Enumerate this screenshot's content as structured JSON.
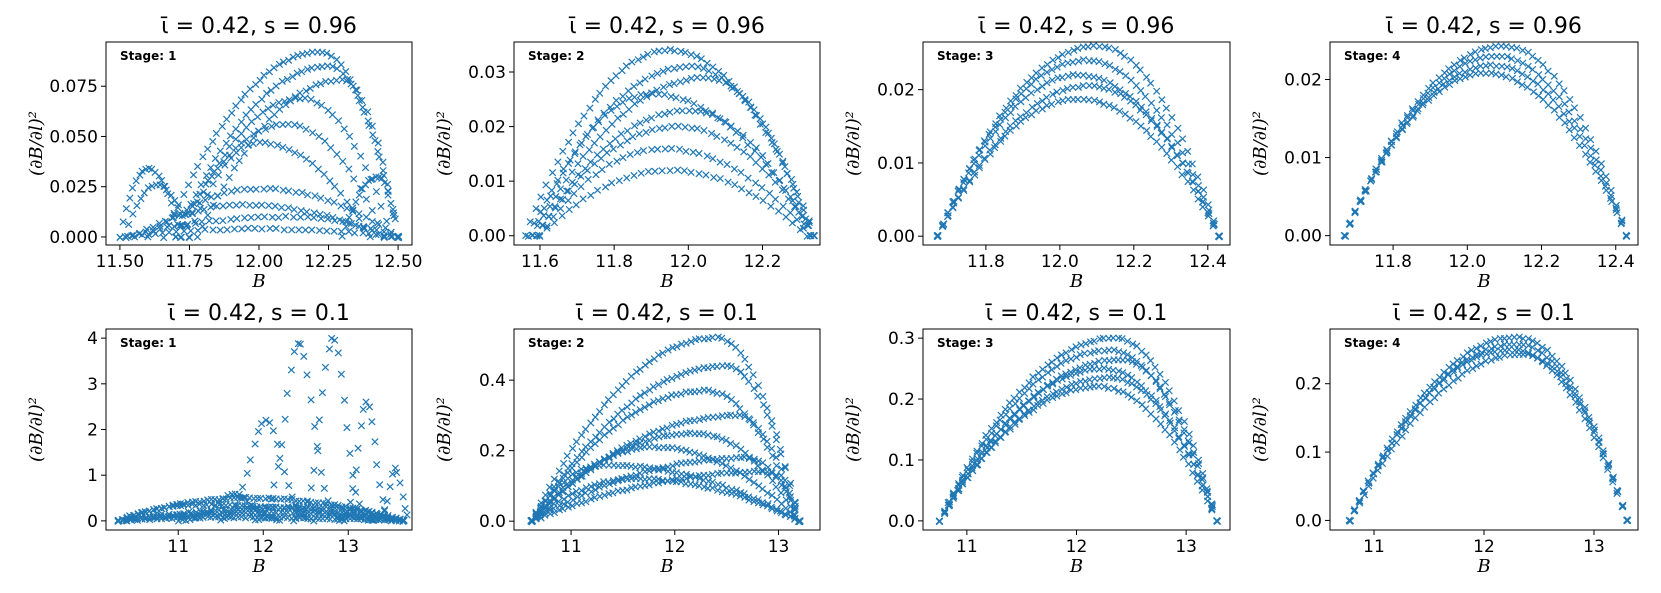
{
  "figure": {
    "ylabel": "(∂B/∂l)²",
    "xlabel": "B",
    "marker_color": "#1f77b4"
  },
  "chart_data": [
    {
      "type": "scatter",
      "row": 1,
      "col": 1,
      "title": "ῑ = 0.42, s = 0.96",
      "annotation": "Stage: 1",
      "xlabel": "B",
      "ylabel": "(∂B/∂l)²",
      "xlim": [
        11.45,
        12.55
      ],
      "ylim": [
        -0.004,
        0.097
      ],
      "xticks": [
        11.5,
        11.75,
        12.0,
        12.25,
        12.5
      ],
      "xtick_labels": [
        "11.50",
        "11.75",
        "12.00",
        "12.25",
        "12.50"
      ],
      "yticks": [
        0.0,
        0.025,
        0.05,
        0.075
      ],
      "ytick_labels": [
        "0.000",
        "0.025",
        "0.050",
        "0.075"
      ],
      "series": [
        {
          "name": "arc",
          "curve": "arc",
          "x": [
            11.66,
            12.5
          ],
          "peak": [
            12.22,
            0.092
          ],
          "n": 50
        },
        {
          "name": "arc",
          "curve": "arc",
          "x": [
            11.7,
            12.5
          ],
          "peak": [
            12.25,
            0.085
          ],
          "n": 45
        },
        {
          "name": "arc",
          "curve": "arc",
          "x": [
            11.78,
            12.5
          ],
          "peak": [
            12.3,
            0.078
          ],
          "n": 40
        },
        {
          "name": "arc",
          "curve": "arc",
          "x": [
            11.72,
            12.48
          ],
          "peak": [
            12.15,
            0.069
          ],
          "n": 40
        },
        {
          "name": "arc",
          "curve": "arc",
          "x": [
            11.7,
            12.45
          ],
          "peak": [
            12.1,
            0.056
          ],
          "n": 36
        },
        {
          "name": "arc",
          "curve": "arc",
          "x": [
            11.75,
            12.4
          ],
          "peak": [
            12.0,
            0.047
          ],
          "n": 32
        },
        {
          "name": "arc",
          "curve": "arc",
          "x": [
            11.5,
            11.72
          ],
          "peak": [
            11.6,
            0.034
          ],
          "n": 20
        },
        {
          "name": "arc",
          "curve": "arc",
          "x": [
            11.52,
            11.75
          ],
          "peak": [
            11.63,
            0.026
          ],
          "n": 18
        },
        {
          "name": "arc",
          "curve": "arc",
          "x": [
            12.3,
            12.5
          ],
          "peak": [
            12.43,
            0.03
          ],
          "n": 18
        },
        {
          "name": "arc",
          "curve": "arc",
          "x": [
            11.6,
            12.5
          ],
          "peak": [
            12.0,
            0.024
          ],
          "n": 40
        },
        {
          "name": "arc",
          "curve": "arc",
          "x": [
            11.55,
            12.45
          ],
          "peak": [
            11.95,
            0.016
          ],
          "n": 40
        },
        {
          "name": "arc",
          "curve": "arc",
          "x": [
            11.52,
            12.5
          ],
          "peak": [
            12.1,
            0.01
          ],
          "n": 40
        },
        {
          "name": "arc",
          "curve": "arc",
          "x": [
            11.5,
            12.5
          ],
          "peak": [
            12.0,
            0.004
          ],
          "n": 40
        }
      ]
    },
    {
      "type": "scatter",
      "row": 1,
      "col": 2,
      "title": "ῑ = 0.42, s = 0.96",
      "annotation": "Stage: 2",
      "xlabel": "B",
      "ylabel": "(∂B/∂l)²",
      "xlim": [
        11.53,
        12.355
      ],
      "ylim": [
        -0.0017,
        0.0355
      ],
      "xticks": [
        11.6,
        11.8,
        12.0,
        12.2
      ],
      "xtick_labels": [
        "11.6",
        "11.8",
        "12.0",
        "12.2"
      ],
      "yticks": [
        0.0,
        0.01,
        0.02,
        0.03
      ],
      "ytick_labels": [
        "0.00",
        "0.01",
        "0.02",
        "0.03"
      ],
      "series": [
        {
          "name": "arc",
          "curve": "arc",
          "x": [
            11.56,
            12.34
          ],
          "peak": [
            11.95,
            0.034
          ],
          "n": 55
        },
        {
          "name": "arc",
          "curve": "arc",
          "x": [
            11.57,
            12.34
          ],
          "peak": [
            12.0,
            0.031
          ],
          "n": 50
        },
        {
          "name": "arc",
          "curve": "arc",
          "x": [
            11.58,
            12.33
          ],
          "peak": [
            12.05,
            0.029
          ],
          "n": 50
        },
        {
          "name": "arc",
          "curve": "arc",
          "x": [
            11.58,
            12.34
          ],
          "peak": [
            11.9,
            0.026
          ],
          "n": 48
        },
        {
          "name": "arc",
          "curve": "arc",
          "x": [
            11.59,
            12.33
          ],
          "peak": [
            12.0,
            0.023
          ],
          "n": 46
        },
        {
          "name": "arc",
          "curve": "arc",
          "x": [
            11.59,
            12.34
          ],
          "peak": [
            11.97,
            0.02
          ],
          "n": 44
        },
        {
          "name": "arc",
          "curve": "arc",
          "x": [
            11.6,
            12.33
          ],
          "peak": [
            11.93,
            0.016
          ],
          "n": 40
        },
        {
          "name": "arc",
          "curve": "arc",
          "x": [
            11.6,
            12.32
          ],
          "peak": [
            11.95,
            0.012
          ],
          "n": 38
        }
      ]
    },
    {
      "type": "scatter",
      "row": 1,
      "col": 3,
      "title": "ῑ = 0.42, s = 0.96",
      "annotation": "Stage: 3",
      "xlabel": "B",
      "ylabel": "(∂B/∂l)²",
      "xlim": [
        11.63,
        12.46
      ],
      "ylim": [
        -0.0012,
        0.0265
      ],
      "xticks": [
        11.8,
        12.0,
        12.2,
        12.4
      ],
      "xtick_labels": [
        "11.8",
        "12.0",
        "12.2",
        "12.4"
      ],
      "yticks": [
        0.0,
        0.01,
        0.02
      ],
      "ytick_labels": [
        "0.00",
        "0.01",
        "0.02"
      ],
      "series": [
        {
          "name": "arc",
          "curve": "arc",
          "x": [
            11.67,
            12.43
          ],
          "peak": [
            12.1,
            0.026
          ],
          "n": 55
        },
        {
          "name": "arc",
          "curve": "arc",
          "x": [
            11.67,
            12.43
          ],
          "peak": [
            12.07,
            0.024
          ],
          "n": 55
        },
        {
          "name": "arc",
          "curve": "arc",
          "x": [
            11.67,
            12.43
          ],
          "peak": [
            12.05,
            0.022
          ],
          "n": 55
        },
        {
          "name": "arc",
          "curve": "arc",
          "x": [
            11.67,
            12.43
          ],
          "peak": [
            12.08,
            0.0205
          ],
          "n": 55
        },
        {
          "name": "arc",
          "curve": "arc",
          "x": [
            11.67,
            12.43
          ],
          "peak": [
            12.05,
            0.0187
          ],
          "n": 55
        }
      ]
    },
    {
      "type": "scatter",
      "row": 1,
      "col": 4,
      "title": "ῑ = 0.42, s = 0.96",
      "annotation": "Stage: 4",
      "xlabel": "B",
      "ylabel": "(∂B/∂l)²",
      "xlim": [
        11.63,
        12.46
      ],
      "ylim": [
        -0.0012,
        0.0248
      ],
      "xticks": [
        11.8,
        12.0,
        12.2,
        12.4
      ],
      "xtick_labels": [
        "11.8",
        "12.0",
        "12.2",
        "12.4"
      ],
      "yticks": [
        0.0,
        0.01,
        0.02
      ],
      "ytick_labels": [
        "0.00",
        "0.01",
        "0.02"
      ],
      "series": [
        {
          "name": "arc",
          "curve": "arc",
          "x": [
            11.67,
            12.43
          ],
          "peak": [
            12.1,
            0.0243
          ],
          "n": 55
        },
        {
          "name": "arc",
          "curve": "arc",
          "x": [
            11.67,
            12.43
          ],
          "peak": [
            12.08,
            0.023
          ],
          "n": 55
        },
        {
          "name": "arc",
          "curve": "arc",
          "x": [
            11.67,
            12.43
          ],
          "peak": [
            12.07,
            0.0218
          ],
          "n": 55
        },
        {
          "name": "arc",
          "curve": "arc",
          "x": [
            11.67,
            12.43
          ],
          "peak": [
            12.05,
            0.0208
          ],
          "n": 55
        }
      ]
    },
    {
      "type": "scatter",
      "row": 2,
      "col": 1,
      "title": "ῑ = 0.42, s = 0.1",
      "annotation": "Stage: 1",
      "xlabel": "B",
      "ylabel": "(∂B/∂l)²",
      "xlim": [
        10.15,
        13.75
      ],
      "ylim": [
        -0.2,
        4.2
      ],
      "xticks": [
        11,
        12,
        13
      ],
      "xtick_labels": [
        "11",
        "12",
        "13"
      ],
      "yticks": [
        0,
        1,
        2,
        3,
        4
      ],
      "ytick_labels": [
        "0",
        "1",
        "2",
        "3",
        "4"
      ],
      "series": [
        {
          "name": "bump",
          "curve": "bump",
          "center": 12.42,
          "width": 0.16,
          "height": 3.9,
          "x": [
            11.9,
            12.95
          ],
          "n": 28
        },
        {
          "name": "bump",
          "curve": "bump",
          "center": 12.82,
          "width": 0.14,
          "height": 4.0,
          "x": [
            12.35,
            13.3
          ],
          "n": 28
        },
        {
          "name": "bump",
          "curve": "bump",
          "center": 12.03,
          "width": 0.18,
          "height": 2.2,
          "x": [
            11.5,
            12.6
          ],
          "n": 26
        },
        {
          "name": "bump",
          "curve": "bump",
          "center": 13.22,
          "width": 0.1,
          "height": 2.6,
          "x": [
            12.9,
            13.5
          ],
          "n": 20
        },
        {
          "name": "bump",
          "curve": "bump",
          "center": 13.55,
          "width": 0.07,
          "height": 1.15,
          "x": [
            13.3,
            13.7
          ],
          "n": 14
        },
        {
          "name": "bump",
          "curve": "bump",
          "center": 11.65,
          "width": 0.2,
          "height": 0.6,
          "x": [
            11.0,
            12.2
          ],
          "n": 26
        },
        {
          "name": "arc",
          "curve": "arc",
          "x": [
            10.3,
            13.65
          ],
          "peak": [
            11.8,
            0.5
          ],
          "n": 75
        },
        {
          "name": "arc",
          "curve": "arc",
          "x": [
            10.3,
            13.65
          ],
          "peak": [
            11.2,
            0.35
          ],
          "n": 75
        },
        {
          "name": "arc",
          "curve": "arc",
          "x": [
            10.3,
            13.65
          ],
          "peak": [
            12.6,
            0.3
          ],
          "n": 75
        },
        {
          "name": "arc",
          "curve": "arc",
          "x": [
            10.3,
            13.65
          ],
          "peak": [
            12.0,
            0.18
          ],
          "n": 75
        },
        {
          "name": "arc",
          "curve": "arc",
          "x": [
            10.3,
            13.65
          ],
          "peak": [
            11.5,
            0.08
          ],
          "n": 75
        }
      ]
    },
    {
      "type": "scatter",
      "row": 2,
      "col": 2,
      "title": "ῑ = 0.42, s = 0.1",
      "annotation": "Stage: 2",
      "xlabel": "B",
      "ylabel": "(∂B/∂l)²",
      "xlim": [
        10.45,
        13.4
      ],
      "ylim": [
        -0.025,
        0.545
      ],
      "xticks": [
        11,
        12,
        13
      ],
      "xtick_labels": [
        "11",
        "12",
        "13"
      ],
      "yticks": [
        0.0,
        0.2,
        0.4
      ],
      "ytick_labels": [
        "0.0",
        "0.2",
        "0.4"
      ],
      "series": [
        {
          "name": "arc",
          "curve": "arc",
          "x": [
            10.62,
            13.2
          ],
          "peak": [
            12.4,
            0.52
          ],
          "n": 60
        },
        {
          "name": "arc",
          "curve": "arc",
          "x": [
            10.62,
            13.2
          ],
          "peak": [
            12.5,
            0.44
          ],
          "n": 60
        },
        {
          "name": "arc",
          "curve": "arc",
          "x": [
            10.62,
            13.2
          ],
          "peak": [
            12.3,
            0.37
          ],
          "n": 60
        },
        {
          "name": "arc",
          "curve": "arc",
          "x": [
            10.62,
            13.2
          ],
          "peak": [
            12.6,
            0.3
          ],
          "n": 60
        },
        {
          "name": "arc",
          "curve": "arc",
          "x": [
            10.62,
            13.2
          ],
          "peak": [
            12.2,
            0.25
          ],
          "n": 60
        },
        {
          "name": "arc",
          "curve": "arc",
          "x": [
            10.62,
            13.2
          ],
          "peak": [
            11.8,
            0.21
          ],
          "n": 60
        },
        {
          "name": "arc",
          "curve": "arc",
          "x": [
            10.62,
            13.2
          ],
          "peak": [
            11.3,
            0.16
          ],
          "n": 60
        },
        {
          "name": "arc",
          "curve": "arc",
          "x": [
            10.62,
            13.2
          ],
          "peak": [
            12.7,
            0.18
          ],
          "n": 60
        },
        {
          "name": "arc",
          "curve": "arc",
          "x": [
            10.62,
            13.2
          ],
          "peak": [
            11.6,
            0.12
          ],
          "n": 60
        },
        {
          "name": "arc",
          "curve": "arc",
          "x": [
            10.62,
            13.2
          ],
          "peak": [
            12.9,
            0.14
          ],
          "n": 60
        }
      ]
    },
    {
      "type": "scatter",
      "row": 2,
      "col": 3,
      "title": "ῑ = 0.42, s = 0.1",
      "annotation": "Stage: 3",
      "xlabel": "B",
      "ylabel": "(∂B/∂l)²",
      "xlim": [
        10.6,
        13.4
      ],
      "ylim": [
        -0.015,
        0.315
      ],
      "xticks": [
        11,
        12,
        13
      ],
      "xtick_labels": [
        "11",
        "12",
        "13"
      ],
      "yticks": [
        0.0,
        0.1,
        0.2,
        0.3
      ],
      "ytick_labels": [
        "0.0",
        "0.1",
        "0.2",
        "0.3"
      ],
      "series": [
        {
          "name": "arc",
          "curve": "arc",
          "x": [
            10.75,
            13.28
          ],
          "peak": [
            12.35,
            0.3
          ],
          "n": 60
        },
        {
          "name": "arc",
          "curve": "arc",
          "x": [
            10.75,
            13.28
          ],
          "peak": [
            12.3,
            0.28
          ],
          "n": 60
        },
        {
          "name": "arc",
          "curve": "arc",
          "x": [
            10.75,
            13.28
          ],
          "peak": [
            12.4,
            0.265
          ],
          "n": 60
        },
        {
          "name": "arc",
          "curve": "arc",
          "x": [
            10.75,
            13.28
          ],
          "peak": [
            12.25,
            0.25
          ],
          "n": 60
        },
        {
          "name": "arc",
          "curve": "arc",
          "x": [
            10.75,
            13.28
          ],
          "peak": [
            12.3,
            0.235
          ],
          "n": 60
        },
        {
          "name": "arc",
          "curve": "arc",
          "x": [
            10.75,
            13.28
          ],
          "peak": [
            12.2,
            0.22
          ],
          "n": 60
        }
      ]
    },
    {
      "type": "scatter",
      "row": 2,
      "col": 4,
      "title": "ῑ = 0.42, s = 0.1",
      "annotation": "Stage: 4",
      "xlabel": "B",
      "ylabel": "(∂B/∂l)²",
      "xlim": [
        10.6,
        13.4
      ],
      "ylim": [
        -0.014,
        0.28
      ],
      "xticks": [
        11,
        12,
        13
      ],
      "xtick_labels": [
        "11",
        "12",
        "13"
      ],
      "yticks": [
        0.0,
        0.1,
        0.2
      ],
      "ytick_labels": [
        "0.0",
        "0.1",
        "0.2"
      ],
      "series": [
        {
          "name": "arc",
          "curve": "arc",
          "x": [
            10.78,
            13.3
          ],
          "peak": [
            12.3,
            0.268
          ],
          "n": 60
        },
        {
          "name": "arc",
          "curve": "arc",
          "x": [
            10.78,
            13.3
          ],
          "peak": [
            12.3,
            0.258
          ],
          "n": 60
        },
        {
          "name": "arc",
          "curve": "arc",
          "x": [
            10.78,
            13.3
          ],
          "peak": [
            12.25,
            0.25
          ],
          "n": 60
        },
        {
          "name": "arc",
          "curve": "arc",
          "x": [
            10.78,
            13.3
          ],
          "peak": [
            12.35,
            0.243
          ],
          "n": 60
        }
      ]
    }
  ]
}
